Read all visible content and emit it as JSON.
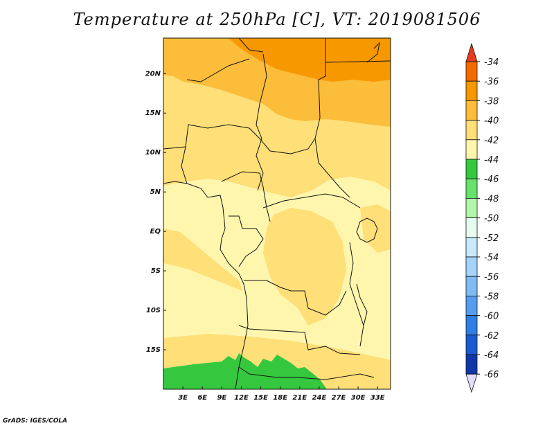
{
  "title": "Temperature at 250hPa [C], VT: 2019081506",
  "credit": "GrADS: IGES/COLA",
  "map": {
    "lat_labels": [
      "20N",
      "15N",
      "10N",
      "5N",
      "EQ",
      "5S",
      "10S",
      "15S"
    ],
    "lon_labels": [
      "3E",
      "6E",
      "9E",
      "12E",
      "15E",
      "18E",
      "21E",
      "24E",
      "27E",
      "30E",
      "33E"
    ],
    "lon_range": [
      0,
      35
    ],
    "lat_range": [
      -20,
      24.5
    ]
  },
  "colorbar": {
    "labels": [
      "-34",
      "-36",
      "-38",
      "-40",
      "-42",
      "-44",
      "-46",
      "-48",
      "-50",
      "-52",
      "-54",
      "-56",
      "-58",
      "-60",
      "-62",
      "-64",
      "-66"
    ],
    "colors": [
      "#f26a00",
      "#f79800",
      "#fbbd3a",
      "#fedf78",
      "#fff6ae",
      "#35c83f",
      "#69e26d",
      "#b2f5ad",
      "#e6fcee",
      "#c7ebfc",
      "#a5d3f9",
      "#7ebcf3",
      "#569df0",
      "#2f7ee6",
      "#1a5bd1",
      "#0f37a8",
      "#080c78",
      "#e0dcfa"
    ],
    "top_color": "#e8391e"
  }
}
